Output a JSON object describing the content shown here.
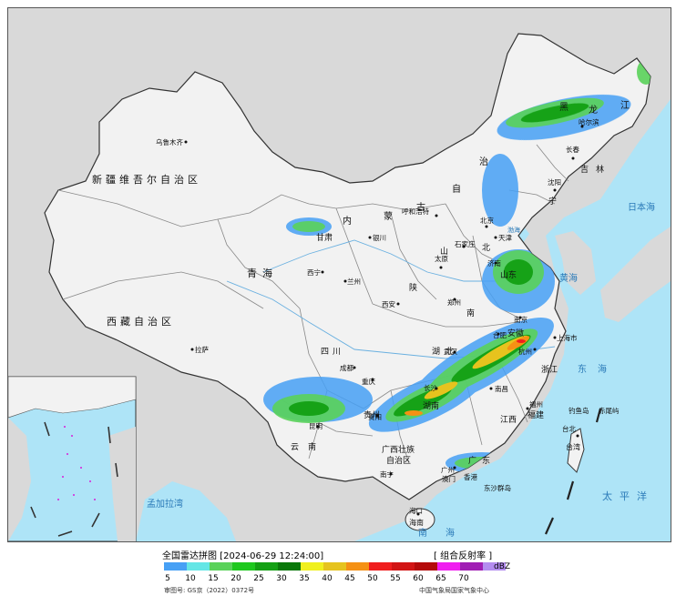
{
  "title": "全国雷达拼图 [2024-06-29 12:24:00]",
  "product": "[ 组合反射率 ]",
  "unit": "dBZ",
  "approval": "审图号: GS京（2022）0372号",
  "org": "中国气象局国家气象中心",
  "legend": {
    "ticks": [
      "5",
      "10",
      "15",
      "20",
      "25",
      "30",
      "35",
      "40",
      "45",
      "50",
      "55",
      "60",
      "65",
      "70"
    ],
    "colors": [
      "#46a0f5",
      "#64e6e6",
      "#5ad25a",
      "#1ec81e",
      "#14a014",
      "#0a780a",
      "#f0f01e",
      "#e6c31e",
      "#f59114",
      "#f01e1e",
      "#d21414",
      "#b40a0a",
      "#f01ef0",
      "#a01eb4",
      "#b48cf0"
    ]
  },
  "colors": {
    "land": "#f2f2f2",
    "neighbor": "#d9d9d9",
    "sea": "#aee4f7",
    "border": "#333333",
    "province_line": "#888888",
    "river": "#6ab0e0"
  },
  "labels": {
    "xinjiang": "新疆维吾尔自治区",
    "xizang": "西藏自治区",
    "qinghai": "青海",
    "gansu": "甘肃",
    "neimenggu_1": "内",
    "neimenggu_2": "蒙",
    "neimenggu_3": "古",
    "neimenggu_4": "自",
    "neimenggu_5": "治",
    "heilongjiang_1": "黑",
    "heilongjiang_2": "龙",
    "heilongjiang_3": "江",
    "jilin": "吉林",
    "liaoning": "宁",
    "hebei": "北",
    "shanxi": "山",
    "shaanxi": "陕",
    "henan": "南",
    "shandong": "山东",
    "sichuan": "四川",
    "hubei": "湖北",
    "hunan": "湖南",
    "jiangxi": "江西",
    "anhui": "安徽",
    "zhejiang": "浙江",
    "fujian": "福建",
    "guangdong": "广东",
    "guangxi_1": "广西壮族",
    "guangxi_2": "自治区",
    "yunnan": "云南",
    "guizhou": "贵州",
    "hainan": "海南",
    "taiwan": "台湾",
    "urumqi": "乌鲁木齐",
    "lhasa": "拉萨",
    "xining": "西宁",
    "lanzhou": "兰州",
    "yinchuan": "银川",
    "hohhot": "呼和浩特",
    "taiyuan": "太原",
    "shijiazhuang": "石家庄",
    "beijing": "北京",
    "tianjin": "天津",
    "xian": "西安",
    "zhengzhou": "郑州",
    "jinan": "济南",
    "wuhan": "武汉",
    "chengdu": "成都",
    "chongqing": "重庆",
    "changsha": "长沙",
    "nanchang": "南昌",
    "hefei": "合肥",
    "nanjing": "南京",
    "shanghai": "上海市",
    "hangzhou": "杭州",
    "fuzhou": "福州",
    "guangzhou": "广州",
    "nanning": "南宁",
    "kunming": "昆明",
    "guiyang": "贵阳",
    "haikou": "海口",
    "shenyang": "沈阳",
    "changchun": "长春",
    "harbin": "哈尔滨",
    "taibei": "台北",
    "hongkong": "香港",
    "macau": "澳门",
    "dongsha": "东沙群岛",
    "diaoyu": "钓鱼岛",
    "chiwei": "赤尾屿",
    "sea_east": "东海",
    "sea_yellow": "黄海",
    "sea_bohai": "渤海",
    "sea_south": "南海",
    "sea_japan": "日本海",
    "pacific": "太平洋",
    "bengal": "孟加拉湾"
  }
}
